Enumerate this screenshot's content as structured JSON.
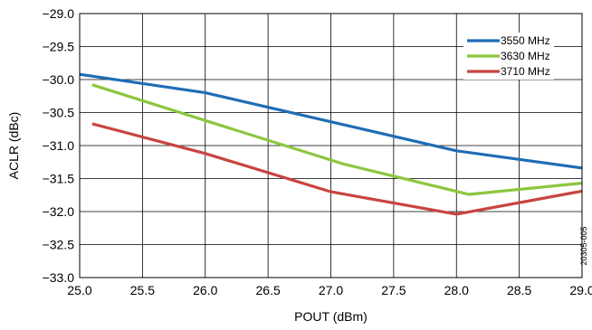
{
  "chart_data": {
    "type": "line",
    "xlabel": "POUT (dBm)",
    "ylabel": "ACLR (dBc)",
    "xlim": [
      25.0,
      29.0
    ],
    "ylim": [
      -33.0,
      -29.0
    ],
    "x_ticks": [
      "25.0",
      "25.5",
      "26.0",
      "26.5",
      "27.0",
      "27.5",
      "28.0",
      "28.5",
      "29.0"
    ],
    "y_ticks": [
      "−29.0",
      "−29.5",
      "−30.0",
      "−30.5",
      "−31.0",
      "−31.5",
      "−32.0",
      "−32.5",
      "−33.0"
    ],
    "grid": true,
    "legend_position": "top-right",
    "figure_id": "20305-005",
    "series": [
      {
        "name": "3550 MHz",
        "color": "#1f6db5",
        "x": [
          25.0,
          26.0,
          27.0,
          28.0,
          29.0
        ],
        "y": [
          -29.92,
          -30.2,
          -30.64,
          -31.08,
          -31.34
        ]
      },
      {
        "name": "3630 MHz",
        "color": "#8cc63f",
        "x": [
          25.1,
          26.0,
          27.1,
          28.1,
          29.0
        ],
        "y": [
          -30.08,
          -30.62,
          -31.28,
          -31.74,
          -31.57
        ]
      },
      {
        "name": "3710 MHz",
        "color": "#c8443f",
        "x": [
          25.1,
          26.0,
          27.0,
          28.0,
          29.0
        ],
        "y": [
          -30.67,
          -31.12,
          -31.7,
          -32.04,
          -31.69
        ]
      }
    ]
  }
}
